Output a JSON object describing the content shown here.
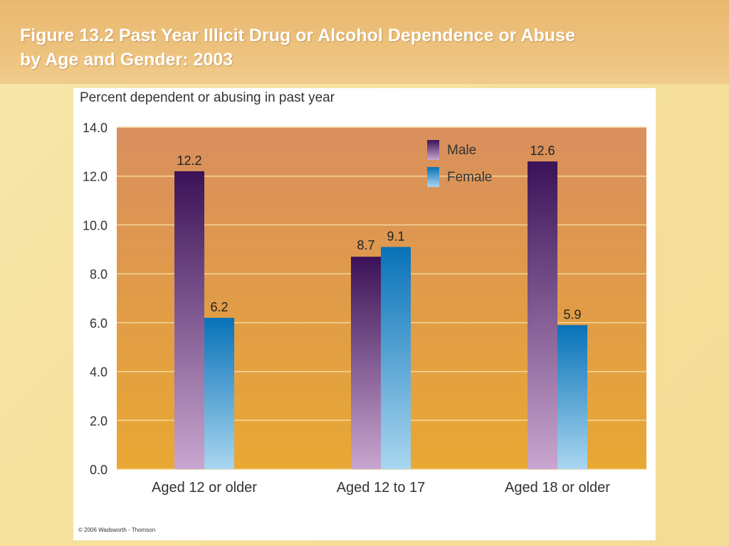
{
  "slide": {
    "title_line1": "Figure 13.2 Past Year Illicit Drug or Alcohol Dependence or Abuse",
    "title_line2": "by Age and Gender: 2003"
  },
  "chart_data": {
    "type": "bar",
    "ylabel": "Percent dependent or abusing in past year",
    "categories": [
      "Aged 12 or older",
      "Aged 12 to 17",
      "Aged 18 or older"
    ],
    "series": [
      {
        "name": "Male",
        "values": [
          12.2,
          8.7,
          12.6
        ],
        "color_top": "#3b1257",
        "color_bottom": "#c9a6cf"
      },
      {
        "name": "Female",
        "values": [
          6.2,
          9.1,
          5.9
        ],
        "color_top": "#0872b8",
        "color_bottom": "#a9d6ef"
      }
    ],
    "ylim": [
      0,
      14
    ],
    "yticks": [
      "0.0",
      "2.0",
      "4.0",
      "6.0",
      "8.0",
      "10.0",
      "12.0",
      "14.0"
    ],
    "data_labels": [
      [
        "12.2",
        "8.7",
        "12.6"
      ],
      [
        "6.2",
        "9.1",
        "5.9"
      ]
    ],
    "grid": true,
    "legend_position": "top-right",
    "plot_background": {
      "top": "#d98f5e",
      "bottom": "#e8a833"
    },
    "footnote": "© 2006 Wadsworth - Thomson"
  }
}
